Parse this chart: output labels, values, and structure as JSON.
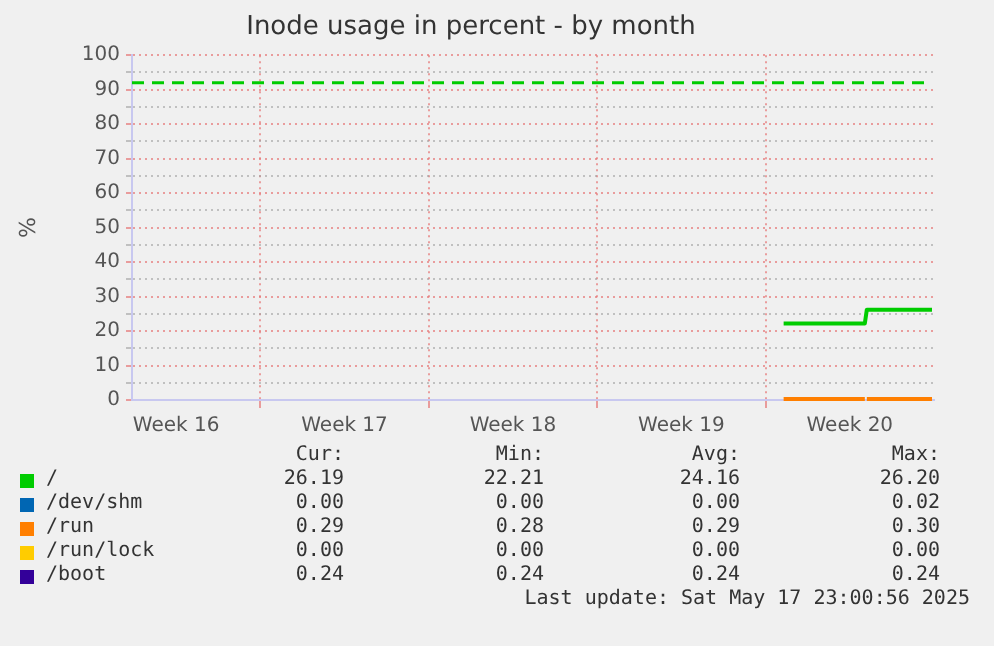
{
  "chart_data": {
    "type": "line",
    "title": "Inode usage in percent - by month",
    "ylabel": "%",
    "xlim": [
      "2025-04-15T16:00",
      "2025-05-19"
    ],
    "xticks": [
      {
        "value": "2025-04-17T12:00",
        "label": "Week 16"
      },
      {
        "value": "2025-04-21",
        "label": null
      },
      {
        "value": "2025-04-24T12:00",
        "label": "Week 17"
      },
      {
        "value": "2025-04-28",
        "label": null
      },
      {
        "value": "2025-05-01T12:00",
        "label": "Week 18"
      },
      {
        "value": "2025-05-05",
        "label": null
      },
      {
        "value": "2025-05-08T12:00",
        "label": "Week 19"
      },
      {
        "value": "2025-05-12",
        "label": null
      },
      {
        "value": "2025-05-15T12:00",
        "label": "Week 20"
      }
    ],
    "ylim": [
      0,
      100
    ],
    "yticks": [
      0,
      {
        "value": 5,
        "label": null
      },
      10,
      {
        "value": 15,
        "label": null
      },
      20,
      {
        "value": 25,
        "label": null
      },
      30,
      {
        "value": 35,
        "label": null
      },
      40,
      {
        "value": 45,
        "label": null
      },
      50,
      {
        "value": 55,
        "label": null
      },
      60,
      {
        "value": 65,
        "label": null
      },
      70,
      {
        "value": 75,
        "label": null
      },
      80,
      {
        "value": 85,
        "label": null
      },
      90,
      {
        "value": 95,
        "label": null
      },
      100
    ],
    "grid": true,
    "legend": "bottom",
    "line_style": "solid",
    "marker": "none",
    "series": [
      {
        "name": "/",
        "color": "#00cc00",
        "x": [
          "2025-05-12T18:00",
          "2025-05-16T03:00",
          "2025-05-16T05:00",
          "2025-05-18T22:00"
        ],
        "values": [
          22.21,
          22.21,
          26.2,
          26.19
        ]
      },
      {
        "name": "/dev/shm",
        "color": "#0066b3"
      },
      {
        "name": "/run/lock",
        "color": "#ffcc00"
      },
      {
        "name": "/boot",
        "color": "#330099"
      },
      {
        "name": "/run",
        "color": "#ff7f00",
        "x": [
          "2025-05-12T18:00",
          "2025-05-16T03:00",
          "2025-05-16T04:00",
          "2025-05-16T05:00",
          "2025-05-18T22:00"
        ],
        "values": [
          0.29,
          0.29,
          null,
          0.3,
          0.3
        ]
      }
    ],
    "ref_lines": [
      {
        "axis": "y",
        "value": 92,
        "label": null,
        "color": "#00cc00",
        "line_style": "dashed"
      }
    ],
    "annotations": [
      "Cur:",
      "Min:",
      "Avg:",
      "Max:",
      "26.19",
      "22.21",
      "24.16",
      "26.20",
      "0.00",
      "0.00",
      "0.00",
      "0.02",
      "0.00",
      "0.00",
      "0.00",
      "0.00",
      "0.24",
      "0.24",
      "0.24",
      "0.24",
      "0.29",
      "0.28",
      "0.29",
      "0.30",
      "Last update: Sat May 17 23:00:56 2025"
    ]
  }
}
